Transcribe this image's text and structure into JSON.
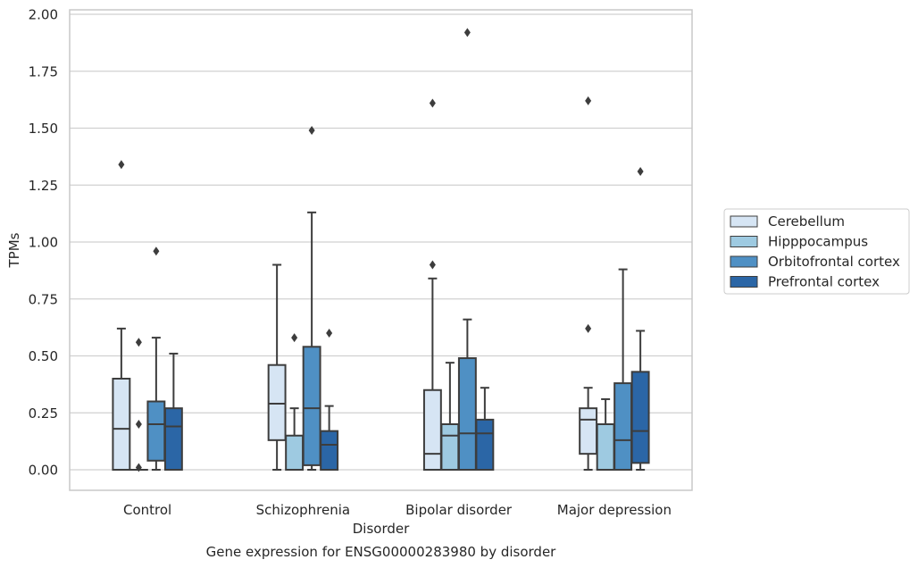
{
  "chart_data": {
    "type": "box",
    "xlabel": "Disorder",
    "ylabel": "TPMs",
    "caption": "Gene expression for ENSG00000283980 by disorder",
    "categories": [
      "Control",
      "Schizophrenia",
      "Bipolar disorder",
      "Major depression"
    ],
    "yticks": [
      "0.00",
      "0.25",
      "0.50",
      "0.75",
      "1.00",
      "1.25",
      "1.50",
      "1.75",
      "2.00"
    ],
    "ylim": [
      -0.09,
      2.02
    ],
    "grid": "horizontal",
    "legend_position": "right",
    "colors": {
      "Cerebellum": "#d6e5f4",
      "Hipppocampus": "#9ecae1",
      "Orbitofrontal cortex": "#4f90c4",
      "Prefrontal cortex": "#2b66a6",
      "box_edge": "#3d3d3d",
      "grid": "#d0d0d0",
      "spine": "#c8c8c8",
      "text": "#262626"
    },
    "series": [
      {
        "name": "Cerebellum",
        "boxes": [
          {
            "whislo": 0.0,
            "q1": 0.0,
            "med": 0.18,
            "q3": 0.4,
            "whishi": 0.62,
            "fliers": [
              1.34
            ]
          },
          {
            "whislo": 0.0,
            "q1": 0.13,
            "med": 0.29,
            "q3": 0.46,
            "whishi": 0.9,
            "fliers": []
          },
          {
            "whislo": 0.0,
            "q1": 0.0,
            "med": 0.07,
            "q3": 0.35,
            "whishi": 0.84,
            "fliers": [
              0.9,
              1.61
            ]
          },
          {
            "whislo": 0.0,
            "q1": 0.07,
            "med": 0.22,
            "q3": 0.27,
            "whishi": 0.36,
            "fliers": [
              0.62,
              1.62
            ]
          }
        ]
      },
      {
        "name": "Hipppocampus",
        "boxes": [
          {
            "whislo": 0.0,
            "q1": 0.0,
            "med": 0.0,
            "q3": 0.0,
            "whishi": 0.0,
            "fliers": [
              0.56,
              0.2,
              0.01
            ]
          },
          {
            "whislo": 0.0,
            "q1": 0.0,
            "med": 0.0,
            "q3": 0.15,
            "whishi": 0.27,
            "fliers": [
              0.58
            ]
          },
          {
            "whislo": 0.0,
            "q1": 0.0,
            "med": 0.15,
            "q3": 0.2,
            "whishi": 0.47,
            "fliers": []
          },
          {
            "whislo": 0.0,
            "q1": 0.0,
            "med": 0.0,
            "q3": 0.2,
            "whishi": 0.31,
            "fliers": []
          }
        ]
      },
      {
        "name": "Orbitofrontal cortex",
        "boxes": [
          {
            "whislo": 0.0,
            "q1": 0.04,
            "med": 0.2,
            "q3": 0.3,
            "whishi": 0.58,
            "fliers": [
              0.96
            ]
          },
          {
            "whislo": 0.0,
            "q1": 0.02,
            "med": 0.27,
            "q3": 0.54,
            "whishi": 1.13,
            "fliers": [
              1.49
            ]
          },
          {
            "whislo": 0.0,
            "q1": 0.0,
            "med": 0.16,
            "q3": 0.49,
            "whishi": 0.66,
            "fliers": [
              1.92
            ]
          },
          {
            "whislo": 0.0,
            "q1": 0.0,
            "med": 0.13,
            "q3": 0.38,
            "whishi": 0.88,
            "fliers": []
          }
        ]
      },
      {
        "name": "Prefrontal cortex",
        "boxes": [
          {
            "whislo": 0.0,
            "q1": 0.0,
            "med": 0.19,
            "q3": 0.27,
            "whishi": 0.51,
            "fliers": []
          },
          {
            "whislo": 0.0,
            "q1": 0.0,
            "med": 0.11,
            "q3": 0.17,
            "whishi": 0.28,
            "fliers": [
              0.6
            ]
          },
          {
            "whislo": 0.0,
            "q1": 0.0,
            "med": 0.16,
            "q3": 0.22,
            "whishi": 0.36,
            "fliers": []
          },
          {
            "whislo": 0.0,
            "q1": 0.03,
            "med": 0.17,
            "q3": 0.43,
            "whishi": 0.61,
            "fliers": [
              1.31
            ]
          }
        ]
      }
    ]
  }
}
